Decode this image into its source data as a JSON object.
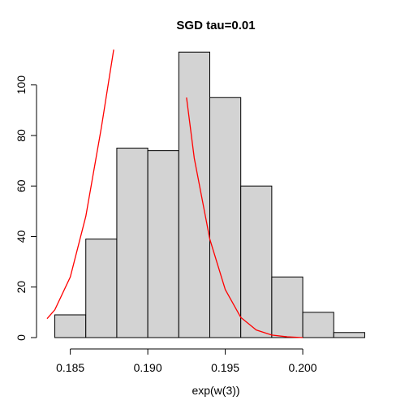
{
  "chart_data": {
    "type": "bar",
    "title": "SGD tau=0.01",
    "xlabel": "exp(w(3))",
    "ylabel": "",
    "xlim": [
      0.1835,
      0.2045
    ],
    "ylim": [
      0,
      115
    ],
    "x_ticks": [
      0.185,
      0.19,
      0.195,
      0.2
    ],
    "x_tick_labels": [
      "0.185",
      "0.190",
      "0.195",
      "0.200"
    ],
    "y_ticks": [
      0,
      20,
      40,
      60,
      80,
      100
    ],
    "y_tick_labels": [
      "0",
      "20",
      "40",
      "60",
      "80",
      "100"
    ],
    "bins": [
      {
        "x0": 0.184,
        "x1": 0.186,
        "count": 9
      },
      {
        "x0": 0.186,
        "x1": 0.188,
        "count": 39
      },
      {
        "x0": 0.188,
        "x1": 0.19,
        "count": 75
      },
      {
        "x0": 0.19,
        "x1": 0.192,
        "count": 74
      },
      {
        "x0": 0.192,
        "x1": 0.194,
        "count": 113
      },
      {
        "x0": 0.194,
        "x1": 0.196,
        "count": 95
      },
      {
        "x0": 0.196,
        "x1": 0.198,
        "count": 60
      },
      {
        "x0": 0.198,
        "x1": 0.2,
        "count": 24
      },
      {
        "x0": 0.2,
        "x1": 0.202,
        "count": 10
      },
      {
        "x0": 0.202,
        "x1": 0.204,
        "count": 2
      }
    ],
    "overlay_curve": {
      "type": "line",
      "color": "#ff0000",
      "points": [
        [
          0.1835,
          7.5
        ],
        [
          0.184,
          11
        ],
        [
          0.185,
          24
        ],
        [
          0.186,
          48
        ],
        [
          0.187,
          83
        ],
        [
          0.1878,
          114
        ],
        [
          0.1918,
          114
        ],
        [
          0.1925,
          95
        ],
        [
          0.193,
          71
        ],
        [
          0.194,
          39
        ],
        [
          0.195,
          19
        ],
        [
          0.196,
          8
        ],
        [
          0.197,
          3
        ],
        [
          0.198,
          1
        ],
        [
          0.199,
          0.3
        ],
        [
          0.2,
          0
        ]
      ]
    },
    "bar_fill": "#d3d3d3",
    "bar_stroke": "#000000",
    "grid": false
  }
}
